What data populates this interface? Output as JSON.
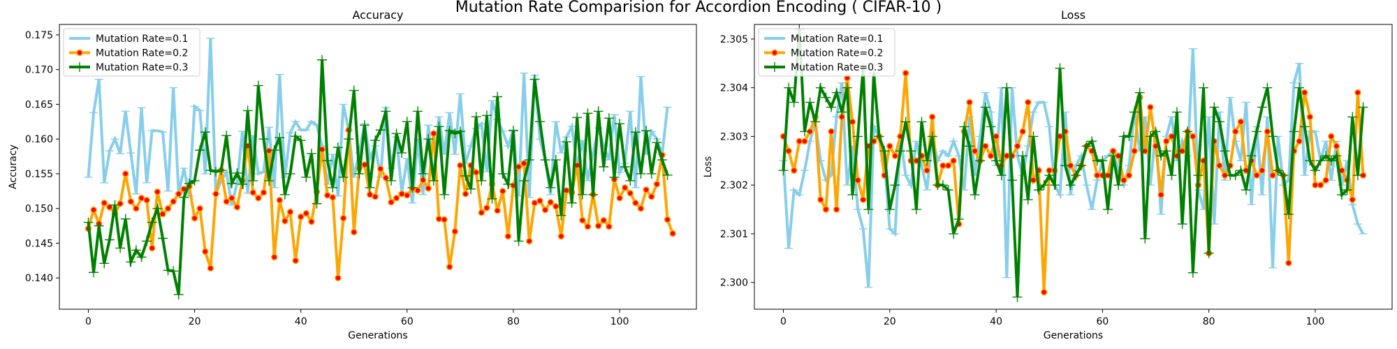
{
  "figure": {
    "suptitle": "Mutation Rate Comparision for Accordion Encoding ( CIFAR-10 )"
  },
  "colors": {
    "rate_0_1": "#87ceeb",
    "rate_0_2": "#ffa500",
    "rate_0_2_marker": "#ff0000",
    "rate_0_3": "#008000"
  },
  "chart_data": [
    {
      "type": "line",
      "title": "Accuracy",
      "xlabel": "Generations",
      "ylabel": "Accuracy",
      "xlim": [
        -5.45,
        114.45
      ],
      "ylim": [
        0.1355,
        0.1765
      ],
      "xticks": [
        0,
        20,
        40,
        60,
        80,
        100
      ],
      "yticks": [
        0.14,
        0.145,
        0.15,
        0.155,
        0.16,
        0.165,
        0.17,
        0.175
      ],
      "ytick_labels": [
        "0.140",
        "0.145",
        "0.150",
        "0.155",
        "0.160",
        "0.165",
        "0.170",
        "0.175"
      ],
      "legend_position": "upper-left",
      "series": [
        {
          "name": "Mutation Rate=0.1",
          "values": [
            0.1545,
            0.1638,
            0.1686,
            0.1537,
            0.1583,
            0.16,
            0.1579,
            0.164,
            0.158,
            0.1521,
            0.1645,
            0.1537,
            0.1612,
            0.1612,
            0.161,
            0.1525,
            0.1674,
            0.1522,
            0.1558,
            0.1518,
            0.1647,
            0.1641,
            0.155,
            0.1745,
            0.1521,
            0.154,
            0.1552,
            0.1505,
            0.1537,
            0.1611,
            0.1522,
            0.1605,
            0.155,
            0.1553,
            0.1617,
            0.153,
            0.1693,
            0.1545,
            0.1609,
            0.1625,
            0.1613,
            0.1613,
            0.1625,
            0.162,
            0.159,
            0.1535,
            0.1578,
            0.1518,
            0.165,
            0.1612,
            0.1545,
            0.158,
            0.1622,
            0.1572,
            0.159,
            0.1545,
            0.1645,
            0.1558,
            0.1603,
            0.1523,
            0.1572,
            0.1508,
            0.16,
            0.152,
            0.162,
            0.154,
            0.1632,
            0.1578,
            0.1638,
            0.1578,
            0.1665,
            0.1565,
            0.159,
            0.1615,
            0.1622,
            0.1553,
            0.1655,
            0.1628,
            0.1611,
            0.159,
            0.1613,
            0.1518,
            0.1695,
            0.1516,
            0.1692,
            0.16,
            0.157,
            0.152,
            0.1625,
            0.158,
            0.1603,
            0.1618,
            0.156,
            0.1598,
            0.154,
            0.158,
            0.1616,
            0.159,
            0.157,
            0.1635,
            0.1552,
            0.1565,
            0.164,
            0.153,
            0.169,
            0.1578,
            0.1611,
            0.16,
            0.1578,
            0.1646
          ]
        },
        {
          "name": "Mutation Rate=0.2",
          "values": [
            0.1471,
            0.1498,
            0.1478,
            0.1508,
            0.1502,
            0.1493,
            0.1507,
            0.155,
            0.151,
            0.15,
            0.1515,
            0.1512,
            0.1443,
            0.1524,
            0.1492,
            0.15,
            0.151,
            0.1521,
            0.1528,
            0.1532,
            0.1486,
            0.15,
            0.1438,
            0.1414,
            0.1521,
            0.1555,
            0.151,
            0.1515,
            0.1502,
            0.154,
            0.159,
            0.1523,
            0.1515,
            0.1523,
            0.1583,
            0.143,
            0.1512,
            0.1482,
            0.1495,
            0.1425,
            0.1488,
            0.1493,
            0.1481,
            0.1524,
            0.1585,
            0.1519,
            0.1516,
            0.14,
            0.1486,
            0.1613,
            0.1466,
            0.1558,
            0.1563,
            0.152,
            0.1517,
            0.1557,
            0.1544,
            0.1509,
            0.1515,
            0.1521,
            0.1519,
            0.1529,
            0.1526,
            0.1541,
            0.1529,
            0.1608,
            0.1485,
            0.1484,
            0.1416,
            0.1467,
            0.1562,
            0.1521,
            0.1562,
            0.1552,
            0.1494,
            0.1501,
            0.1535,
            0.1497,
            0.1525,
            0.146,
            0.1533,
            0.156,
            0.1565,
            0.1453,
            0.1508,
            0.1511,
            0.1498,
            0.1509,
            0.1503,
            0.146,
            0.1526,
            0.1523,
            0.1562,
            0.1483,
            0.1474,
            0.152,
            0.1475,
            0.1483,
            0.1474,
            0.1542,
            0.1515,
            0.153,
            0.1522,
            0.1508,
            0.15,
            0.1527,
            0.1517,
            0.1535,
            0.1577,
            0.1484,
            0.1464
          ]
        },
        {
          "name": "Mutation Rate=0.3",
          "values": [
            0.148,
            0.1408,
            0.1475,
            0.1421,
            0.1455,
            0.1505,
            0.1443,
            0.1485,
            0.1423,
            0.144,
            0.143,
            0.1453,
            0.148,
            0.15,
            0.1457,
            0.1411,
            0.141,
            0.1376,
            0.1516,
            0.1536,
            0.154,
            0.1584,
            0.161,
            0.1555,
            0.1553,
            0.1555,
            0.1605,
            0.1536,
            0.1551,
            0.1535,
            0.1641,
            0.154,
            0.1677,
            0.16,
            0.154,
            0.1584,
            0.1602,
            0.152,
            0.155,
            0.1604,
            0.1598,
            0.1545,
            0.1579,
            0.1507,
            0.1714,
            0.1569,
            0.153,
            0.1588,
            0.1545,
            0.16,
            0.167,
            0.155,
            0.162,
            0.153,
            0.1598,
            0.1613,
            0.164,
            0.154,
            0.1608,
            0.158,
            0.1625,
            0.153,
            0.164,
            0.155,
            0.16,
            0.154,
            0.1618,
            0.152,
            0.1612,
            0.1608,
            0.1611,
            0.1547,
            0.1528,
            0.1632,
            0.154,
            0.1634,
            0.1514,
            0.1661,
            0.155,
            0.1535,
            0.1612,
            0.1453,
            0.154,
            0.157,
            0.1686,
            0.1625,
            0.157,
            0.153,
            0.157,
            0.149,
            0.1596,
            0.1508,
            0.1631,
            0.152,
            0.1637,
            0.152,
            0.164,
            0.156,
            0.163,
            0.1545,
            0.1622,
            0.156,
            0.154,
            0.161,
            0.155,
            0.1612,
            0.155,
            0.1595,
            0.157,
            0.1548
          ]
        }
      ]
    },
    {
      "type": "line",
      "title": "Loss",
      "xlabel": "Generations",
      "ylabel": "Loss",
      "xlim": [
        -5.45,
        114.45
      ],
      "ylim": [
        2.29945,
        2.3053
      ],
      "xticks": [
        0,
        20,
        40,
        60,
        80,
        100
      ],
      "yticks": [
        2.3,
        2.301,
        2.302,
        2.303,
        2.304,
        2.305
      ],
      "ytick_labels": [
        "2.300",
        "2.301",
        "2.302",
        "2.303",
        "2.304",
        "2.305"
      ],
      "legend_position": "upper-left",
      "series": [
        {
          "name": "Mutation Rate=0.1",
          "values": [
            2.3025,
            2.3007,
            2.3019,
            2.3018,
            2.3023,
            2.3029,
            2.3033,
            2.3025,
            2.3021,
            2.3022,
            2.3034,
            2.3041,
            2.302,
            2.3028,
            2.3015,
            2.3011,
            2.2999,
            2.3032,
            2.303,
            2.3025,
            2.3011,
            2.301,
            2.303,
            2.3022,
            2.302,
            2.3029,
            2.3024,
            2.3019,
            2.303,
            2.3025,
            2.3027,
            2.3026,
            2.3029,
            2.3026,
            2.3019,
            2.3034,
            2.3022,
            2.303,
            2.3039,
            2.3035,
            2.3024,
            2.304,
            2.3001,
            2.304,
            2.3026,
            2.3022,
            2.3028,
            2.3035,
            2.3037,
            2.3037,
            2.3032,
            2.302,
            2.3018,
            2.3035,
            2.3018,
            2.3024,
            2.3026,
            2.302,
            2.3015,
            2.3021,
            2.3025,
            2.3026,
            2.3027,
            2.3023,
            2.302,
            2.3024,
            2.3035,
            2.3027,
            2.3034,
            2.302,
            2.3031,
            2.3014,
            2.303,
            2.3034,
            2.3025,
            2.3029,
            2.3026,
            2.3048,
            2.3019,
            2.3015,
            2.3034,
            2.3012,
            2.3035,
            2.3021,
            2.3038,
            2.3029,
            2.3025,
            2.3037,
            2.3016,
            2.3032,
            2.3018,
            2.3034,
            2.3003,
            2.303,
            2.302,
            2.3021,
            2.3041,
            2.3045,
            2.3022,
            2.3031,
            2.3031,
            2.3025,
            2.3029,
            2.3021,
            2.3029,
            2.302,
            2.3025,
            2.3016,
            2.3012,
            2.301
          ]
        },
        {
          "name": "Mutation Rate=0.2",
          "values": [
            2.303,
            2.3027,
            2.3023,
            2.3029,
            2.3029,
            2.3031,
            2.3034,
            2.3017,
            2.3015,
            2.3031,
            2.3015,
            2.3034,
            2.3042,
            2.3033,
            2.3021,
            2.3017,
            2.3028,
            2.3029,
            2.303,
            2.3022,
            2.3028,
            2.3026,
            2.303,
            2.3043,
            2.3025,
            2.3025,
            2.3026,
            2.3023,
            2.3034,
            2.302,
            2.3024,
            2.3024,
            2.3025,
            2.3012,
            2.3031,
            2.3037,
            2.3027,
            2.3025,
            2.3028,
            2.3026,
            2.303,
            2.3024,
            2.3026,
            2.3026,
            2.3028,
            2.3031,
            2.3037,
            2.3021,
            2.3023,
            2.2998,
            2.3023,
            2.3023,
            2.303,
            2.3031,
            2.3024,
            2.3022,
            2.3024,
            2.3028,
            2.3027,
            2.3022,
            2.3022,
            2.3022,
            2.3027,
            2.3026,
            2.3021,
            2.3022,
            2.3027,
            2.3038,
            2.3027,
            2.3036,
            2.3028,
            2.3018,
            2.3029,
            2.303,
            2.3026,
            2.3027,
            2.3031,
            2.303,
            2.302,
            2.3025,
            2.3006,
            2.3029,
            2.3024,
            2.3022,
            2.3024,
            2.3031,
            2.3033,
            2.3023,
            2.3025,
            2.3022,
            2.3023,
            2.3031,
            2.3022,
            2.3023,
            2.3022,
            2.3004,
            2.3027,
            2.3029,
            2.3039,
            2.3034,
            2.302,
            2.302,
            2.3021,
            2.303,
            2.3028,
            2.3023,
            2.3021,
            2.3017,
            2.3039,
            2.3022
          ]
        },
        {
          "name": "Mutation Rate=0.3",
          "values": [
            2.3023,
            2.304,
            2.3037,
            2.3052,
            2.3031,
            2.3037,
            2.3033,
            2.304,
            2.3038,
            2.3036,
            2.3039,
            2.3035,
            2.304,
            2.3018,
            2.303,
            2.3044,
            2.3015,
            2.3043,
            2.303,
            2.3027,
            2.3015,
            2.302,
            2.3027,
            2.3033,
            2.3027,
            2.3015,
            2.3033,
            2.3025,
            2.303,
            2.302,
            2.302,
            2.3019,
            2.301,
            2.3013,
            2.3032,
            2.3028,
            2.3018,
            2.3025,
            2.3036,
            2.3032,
            2.3025,
            2.3022,
            2.304,
            2.3021,
            2.2997,
            2.3026,
            2.3017,
            2.303,
            2.3019,
            2.302,
            2.3022,
            2.302,
            2.3044,
            2.3024,
            2.302,
            2.3022,
            2.3024,
            2.3028,
            2.3029,
            2.3025,
            2.3025,
            2.3015,
            2.3026,
            2.302,
            2.303,
            2.303,
            2.3035,
            2.3039,
            2.3009,
            2.303,
            2.3031,
            2.3026,
            2.3027,
            2.3022,
            2.3035,
            2.3012,
            2.3031,
            2.3002,
            2.3022,
            2.304,
            2.3006,
            2.3036,
            2.3033,
            2.3027,
            2.3022,
            2.3022,
            2.3023,
            2.3019,
            2.3026,
            2.3031,
            2.3036,
            2.304,
            2.303,
            2.3023,
            2.3022,
            2.3014,
            2.3031,
            2.304,
            2.3032,
            2.3025,
            2.3023,
            2.3025,
            2.3026,
            2.3025,
            2.3026,
            2.3018,
            2.3019,
            2.3034,
            2.3022,
            2.3036
          ]
        }
      ]
    }
  ]
}
